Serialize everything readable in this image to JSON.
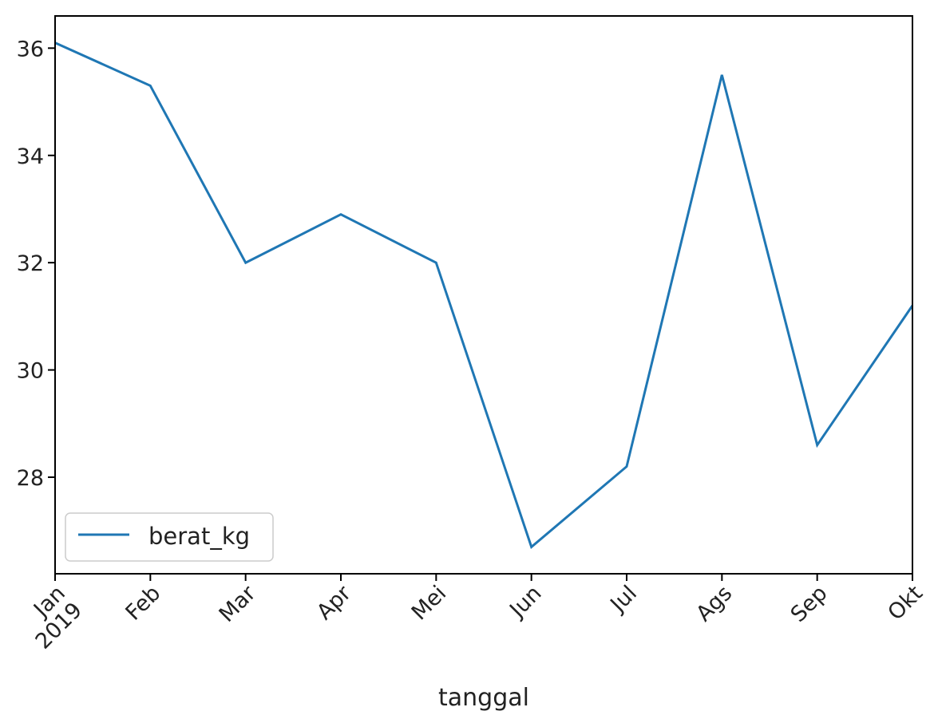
{
  "chart_data": {
    "type": "line",
    "categories": [
      "Jan\n2019",
      "Feb",
      "Mar",
      "Apr",
      "Mei",
      "Jun",
      "Jul",
      "Ags",
      "Sep",
      "Okt"
    ],
    "x_tick_labels": [
      [
        "Jan",
        "2019"
      ],
      [
        "Feb"
      ],
      [
        "Mar"
      ],
      [
        "Apr"
      ],
      [
        "Mei"
      ],
      [
        "Jun"
      ],
      [
        "Jul"
      ],
      [
        "Ags"
      ],
      [
        "Sep"
      ],
      [
        "Okt"
      ]
    ],
    "series": [
      {
        "name": "berat_kg",
        "color": "#1f77b4",
        "values": [
          36.1,
          35.3,
          32.0,
          32.9,
          32.0,
          26.7,
          28.2,
          35.5,
          28.6,
          31.2
        ]
      }
    ],
    "xlabel": "tanggal",
    "ylabel": "",
    "title": "",
    "ylim": [
      26.2,
      36.6
    ],
    "y_ticks": [
      28,
      30,
      32,
      34,
      36
    ],
    "grid": false,
    "legend_position": "lower-left"
  }
}
